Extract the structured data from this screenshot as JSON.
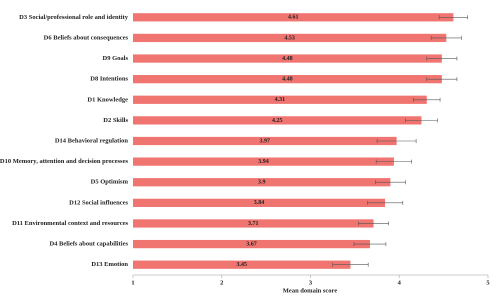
{
  "chart_data": {
    "type": "bar",
    "orientation": "horizontal",
    "categories": [
      "D3 Social/professional role and identity",
      "D6 Beliefs about consequences",
      "D9 Goals",
      "D8 Intentions",
      "D1 Knowledge",
      "D2 Skills",
      "D14 Behavioral regulation",
      "D10 Memory, attention and decision processes",
      "D5 Optimism",
      "D12 Social influences",
      "D11 Environmental context and resources",
      "D4 Beliefs about capabilities",
      "D13 Emotion"
    ],
    "values": [
      4.61,
      4.53,
      4.48,
      4.48,
      4.31,
      4.25,
      3.97,
      3.94,
      3.9,
      3.84,
      3.71,
      3.67,
      3.45
    ],
    "errors": [
      0.16,
      0.17,
      0.17,
      0.17,
      0.15,
      0.18,
      0.22,
      0.2,
      0.17,
      0.2,
      0.17,
      0.18,
      0.2
    ],
    "color": "#f07470",
    "xlabel": "Mean domain score",
    "xlim": [
      1,
      5
    ],
    "xticks": [
      1,
      2,
      3,
      4,
      5
    ],
    "grid": false
  }
}
